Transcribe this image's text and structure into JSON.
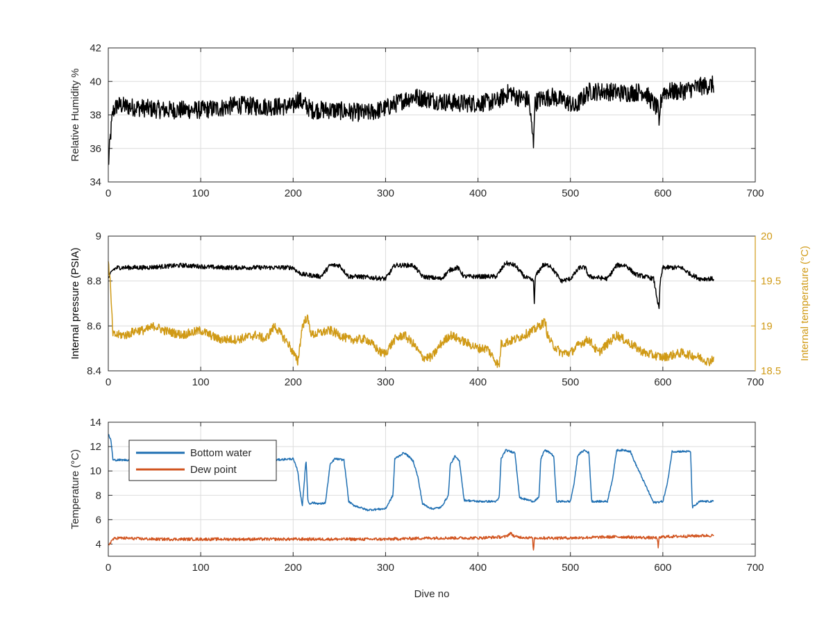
{
  "figure": {
    "xlabel": "Dive no"
  },
  "chart_data": [
    {
      "type": "line",
      "title": "",
      "xlabel": "",
      "ylabel": "Relative Humidity %",
      "xlim": [
        0,
        700
      ],
      "ylim": [
        34,
        42
      ],
      "xticks": [
        "0",
        "100",
        "200",
        "300",
        "400",
        "500",
        "600",
        "700"
      ],
      "yticks": [
        "34",
        "36",
        "38",
        "40",
        "42"
      ],
      "grid": true,
      "series": [
        {
          "color": "#000000",
          "noise": 0.55,
          "x": [
            0,
            2,
            5,
            10,
            20,
            40,
            60,
            80,
            100,
            120,
            140,
            160,
            180,
            200,
            205,
            210,
            220,
            240,
            260,
            280,
            300,
            320,
            330,
            340,
            360,
            380,
            400,
            420,
            435,
            440,
            455,
            460,
            461,
            462,
            465,
            480,
            500,
            505,
            510,
            520,
            540,
            560,
            580,
            595,
            596,
            597,
            600,
            620,
            640,
            655
          ],
          "y": [
            34.9,
            36.5,
            38.2,
            38.6,
            38.5,
            38.4,
            38.3,
            38.3,
            38.3,
            38.4,
            38.6,
            38.5,
            38.5,
            38.5,
            39.0,
            38.7,
            38.3,
            38.3,
            38.2,
            38.1,
            38.4,
            38.9,
            39.1,
            39.0,
            38.8,
            38.7,
            38.7,
            38.8,
            39.4,
            39.1,
            38.9,
            36.3,
            38.3,
            38.7,
            38.9,
            39.1,
            38.7,
            38.4,
            38.8,
            39.4,
            39.4,
            39.3,
            39.4,
            38.3,
            37.0,
            38.5,
            39.4,
            39.4,
            39.7,
            39.8
          ]
        }
      ]
    },
    {
      "type": "line",
      "title": "",
      "xlabel": "",
      "ylabel": "Internal pressure (PSIA)",
      "ylabel_right": "Internal temperature (°C)",
      "xlim": [
        0,
        700
      ],
      "ylim": [
        8.4,
        9.0
      ],
      "ylim_right": [
        18.5,
        20.0
      ],
      "xticks": [
        "0",
        "100",
        "200",
        "300",
        "400",
        "500",
        "600",
        "700"
      ],
      "yticks": [
        "8.4",
        "8.6",
        "8.8",
        "9"
      ],
      "yticks_right": [
        "18.5",
        "19",
        "19.5",
        "20"
      ],
      "grid": true,
      "series": [
        {
          "color": "#000000",
          "axis": "left",
          "noise": 0.01,
          "x": [
            0,
            5,
            10,
            40,
            80,
            120,
            160,
            200,
            205,
            210,
            230,
            240,
            250,
            260,
            270,
            300,
            310,
            320,
            330,
            340,
            360,
            370,
            378,
            385,
            400,
            420,
            430,
            440,
            450,
            460,
            461,
            462,
            470,
            478,
            485,
            490,
            500,
            510,
            516,
            520,
            540,
            550,
            560,
            570,
            590,
            596,
            597,
            600,
            610,
            620,
            630,
            640,
            655
          ],
          "y": [
            8.81,
            8.85,
            8.86,
            8.86,
            8.87,
            8.86,
            8.86,
            8.86,
            8.84,
            8.83,
            8.82,
            8.87,
            8.87,
            8.82,
            8.82,
            8.81,
            8.87,
            8.87,
            8.87,
            8.82,
            8.81,
            8.85,
            8.86,
            8.82,
            8.82,
            8.82,
            8.88,
            8.87,
            8.82,
            8.8,
            8.7,
            8.82,
            8.87,
            8.87,
            8.83,
            8.8,
            8.81,
            8.86,
            8.86,
            8.82,
            8.81,
            8.87,
            8.87,
            8.83,
            8.81,
            8.67,
            8.79,
            8.86,
            8.86,
            8.86,
            8.83,
            8.81,
            8.81
          ]
        },
        {
          "color": "#d09a16",
          "axis": "right",
          "noise": 0.05,
          "x": [
            0,
            2,
            5,
            10,
            20,
            30,
            40,
            50,
            60,
            80,
            100,
            120,
            140,
            160,
            170,
            180,
            195,
            200,
            205,
            210,
            215,
            220,
            240,
            260,
            280,
            295,
            300,
            310,
            320,
            330,
            340,
            350,
            360,
            370,
            380,
            390,
            400,
            410,
            423,
            425,
            440,
            460,
            473,
            475,
            480,
            490,
            500,
            510,
            520,
            530,
            550,
            565,
            580,
            600,
            620,
            640,
            650,
            655
          ],
          "y": [
            19.7,
            19.5,
            18.9,
            18.9,
            18.9,
            18.95,
            18.95,
            19.0,
            18.95,
            18.9,
            18.95,
            18.85,
            18.85,
            18.9,
            18.85,
            19.0,
            18.8,
            18.7,
            18.6,
            19.0,
            19.1,
            18.9,
            18.95,
            18.85,
            18.85,
            18.7,
            18.7,
            18.85,
            18.9,
            18.8,
            18.65,
            18.65,
            18.8,
            18.9,
            18.85,
            18.8,
            18.75,
            18.75,
            18.55,
            18.8,
            18.85,
            18.95,
            19.05,
            18.9,
            18.8,
            18.7,
            18.7,
            18.8,
            18.85,
            18.7,
            18.9,
            18.8,
            18.7,
            18.65,
            18.7,
            18.65,
            18.6,
            18.65
          ]
        }
      ]
    },
    {
      "type": "line",
      "title": "",
      "xlabel": "Dive no",
      "ylabel": "Temperature (°C)",
      "xlim": [
        0,
        700
      ],
      "ylim": [
        3,
        14
      ],
      "xticks": [
        "0",
        "100",
        "200",
        "300",
        "400",
        "500",
        "600",
        "700"
      ],
      "yticks": [
        "4",
        "6",
        "8",
        "10",
        "12",
        "14"
      ],
      "grid": true,
      "legend": "top-left",
      "series": [
        {
          "name": "Bottom water",
          "color": "#1f6fb2",
          "noise": 0.08,
          "x": [
            0,
            3,
            5,
            20,
            40,
            60,
            80,
            100,
            120,
            140,
            160,
            180,
            200,
            205,
            208,
            210,
            214,
            216,
            218,
            220,
            230,
            235,
            240,
            245,
            255,
            258,
            260,
            265,
            280,
            300,
            308,
            310,
            320,
            325,
            330,
            335,
            340,
            350,
            360,
            368,
            370,
            375,
            380,
            385,
            400,
            420,
            423,
            425,
            430,
            435,
            440,
            445,
            460,
            466,
            468,
            472,
            478,
            482,
            485,
            500,
            504,
            508,
            515,
            520,
            523,
            540,
            546,
            550,
            560,
            565,
            568,
            590,
            600,
            605,
            610,
            630,
            632,
            640,
            655
          ],
          "y": [
            13.0,
            12.5,
            10.9,
            10.9,
            10.9,
            10.9,
            10.9,
            10.9,
            10.9,
            10.9,
            10.9,
            10.9,
            11.0,
            10.0,
            8.0,
            7.2,
            10.9,
            7.5,
            7.3,
            7.4,
            7.3,
            7.4,
            10.5,
            11.0,
            10.9,
            9.0,
            7.5,
            7.2,
            6.8,
            6.9,
            8.0,
            11.0,
            11.5,
            11.2,
            10.8,
            9.5,
            7.3,
            6.9,
            7.0,
            8.0,
            10.5,
            11.2,
            10.8,
            7.6,
            7.5,
            7.5,
            7.8,
            11.0,
            11.7,
            11.6,
            11.5,
            7.8,
            7.5,
            7.8,
            11.0,
            11.7,
            11.5,
            11.2,
            7.5,
            7.5,
            9.0,
            11.3,
            11.7,
            11.5,
            7.5,
            7.5,
            9.5,
            11.7,
            11.7,
            11.6,
            11.0,
            7.4,
            7.5,
            9.0,
            11.6,
            11.6,
            7.0,
            7.5,
            7.5
          ]
        },
        {
          "name": "Dew point",
          "color": "#d1541f",
          "noise": 0.12,
          "x": [
            0,
            5,
            10,
            50,
            100,
            150,
            200,
            250,
            300,
            350,
            400,
            430,
            435,
            440,
            459,
            460,
            461,
            462,
            500,
            550,
            594,
            595,
            596,
            600,
            650,
            655
          ],
          "y": [
            3.9,
            4.4,
            4.5,
            4.4,
            4.4,
            4.4,
            4.4,
            4.4,
            4.4,
            4.5,
            4.5,
            4.6,
            4.9,
            4.6,
            4.5,
            3.4,
            4.5,
            4.5,
            4.5,
            4.6,
            4.5,
            3.7,
            4.5,
            4.6,
            4.7,
            4.7
          ]
        }
      ]
    }
  ]
}
